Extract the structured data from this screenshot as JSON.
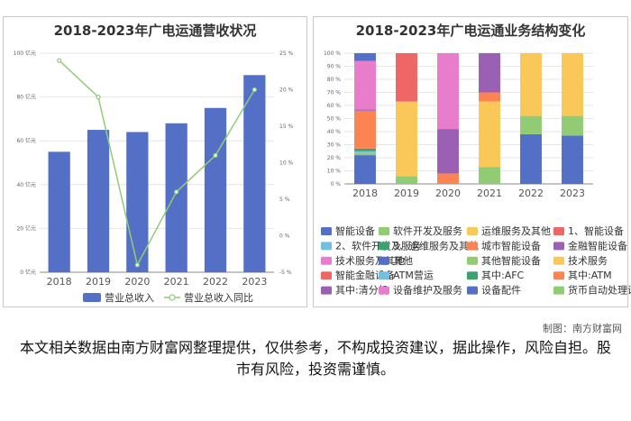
{
  "credit": "制图：南方财富网",
  "disclaimer": "本文相关数据由南方财富网整理提供，仅供参考，不构成投资建议，据此操作，风险自担。股市有风险，投资需谨慎。",
  "chart_data": [
    {
      "type": "bar",
      "title": "2018-2023年广电运通营收状况",
      "categories": [
        "2018",
        "2019",
        "2020",
        "2021",
        "2022",
        "2023"
      ],
      "series": [
        {
          "name": "营业总收入",
          "type": "bar",
          "axis": "left",
          "color": "#5470c6",
          "values": [
            55,
            65,
            64,
            68,
            75,
            90
          ]
        },
        {
          "name": "营业总收入同比",
          "type": "line",
          "axis": "right",
          "color": "#91cc75",
          "values": [
            24,
            19,
            -4,
            6,
            11,
            20
          ]
        }
      ],
      "y_left": {
        "min": 0,
        "max": 100,
        "step": 20,
        "suffix": " 亿元"
      },
      "y_right": {
        "min": -5,
        "max": 25,
        "step": 5,
        "suffix": " %"
      },
      "legend_position": "bottom"
    },
    {
      "type": "stacked-bar",
      "title": "2018-2023年广电运通业务结构变化",
      "categories": [
        "2018",
        "2019",
        "2020",
        "2021",
        "2022",
        "2023"
      ],
      "y_axis": {
        "min": 0,
        "max": 100,
        "step": 10,
        "suffix": " %"
      },
      "legend_position": "bottom",
      "series": [
        {
          "name": "智能设备",
          "color": "#5470c6",
          "values": [
            0,
            0,
            0,
            0,
            38,
            37
          ]
        },
        {
          "name": "软件开发及服务",
          "color": "#91cc75",
          "values": [
            0,
            0,
            0,
            0,
            14,
            15
          ]
        },
        {
          "name": "运维服务及其他",
          "color": "#fac858",
          "values": [
            0,
            0,
            0,
            0,
            48,
            48
          ]
        },
        {
          "name": "1、智能设备",
          "color": "#ee6666",
          "values": [
            0,
            0,
            0,
            0,
            0,
            0
          ]
        },
        {
          "name": "2、软件开发及服务",
          "color": "#73c0de",
          "values": [
            0,
            0,
            0,
            0,
            0,
            0
          ]
        },
        {
          "name": "3、运维服务及其他",
          "color": "#3ba272",
          "values": [
            0,
            0,
            0,
            0,
            0,
            0
          ]
        },
        {
          "name": "城市智能设备",
          "color": "#fc8452",
          "values": [
            0,
            0,
            0,
            0,
            0,
            0
          ]
        },
        {
          "name": "金融智能设备",
          "color": "#9a60b4",
          "values": [
            0,
            0,
            0,
            0,
            0,
            0
          ]
        },
        {
          "name": "技术服务及其他",
          "color": "#ea7ccc",
          "values": [
            0,
            0,
            0,
            0,
            0,
            0
          ]
        },
        {
          "name": "其他",
          "color": "#5470c6",
          "values": [
            22,
            0,
            0,
            0,
            0,
            0
          ]
        },
        {
          "name": "其他智能设备",
          "color": "#91cc75",
          "values": [
            2,
            6,
            0,
            13,
            0,
            0
          ]
        },
        {
          "name": "技术服务",
          "color": "#fac858",
          "values": [
            0,
            57,
            0,
            50,
            0,
            0
          ]
        },
        {
          "name": "智能金融设备",
          "color": "#ee6666",
          "values": [
            0,
            37,
            0,
            0,
            0,
            0
          ]
        },
        {
          "name": "ATM营运",
          "color": "#73c0de",
          "values": [
            1,
            0,
            0,
            0,
            0,
            0
          ]
        },
        {
          "name": "其中:AFC",
          "color": "#3ba272",
          "values": [
            2,
            0,
            0,
            0,
            0,
            0
          ]
        },
        {
          "name": "其中:ATM",
          "color": "#fc8452",
          "values": [
            29,
            0,
            8,
            7,
            0,
            0
          ]
        },
        {
          "name": "其中:清分机",
          "color": "#9a60b4",
          "values": [
            1,
            0,
            34,
            30,
            0,
            0
          ]
        },
        {
          "name": "设备维护及服务",
          "color": "#ea7ccc",
          "values": [
            37,
            0,
            58,
            0,
            0,
            0
          ]
        },
        {
          "name": "设备配件",
          "color": "#5470c6",
          "values": [
            6,
            0,
            0,
            0,
            0,
            0
          ]
        },
        {
          "name": "货币自动处理设备",
          "color": "#91cc75",
          "values": [
            0,
            0,
            0,
            0,
            0,
            0
          ]
        }
      ]
    }
  ]
}
